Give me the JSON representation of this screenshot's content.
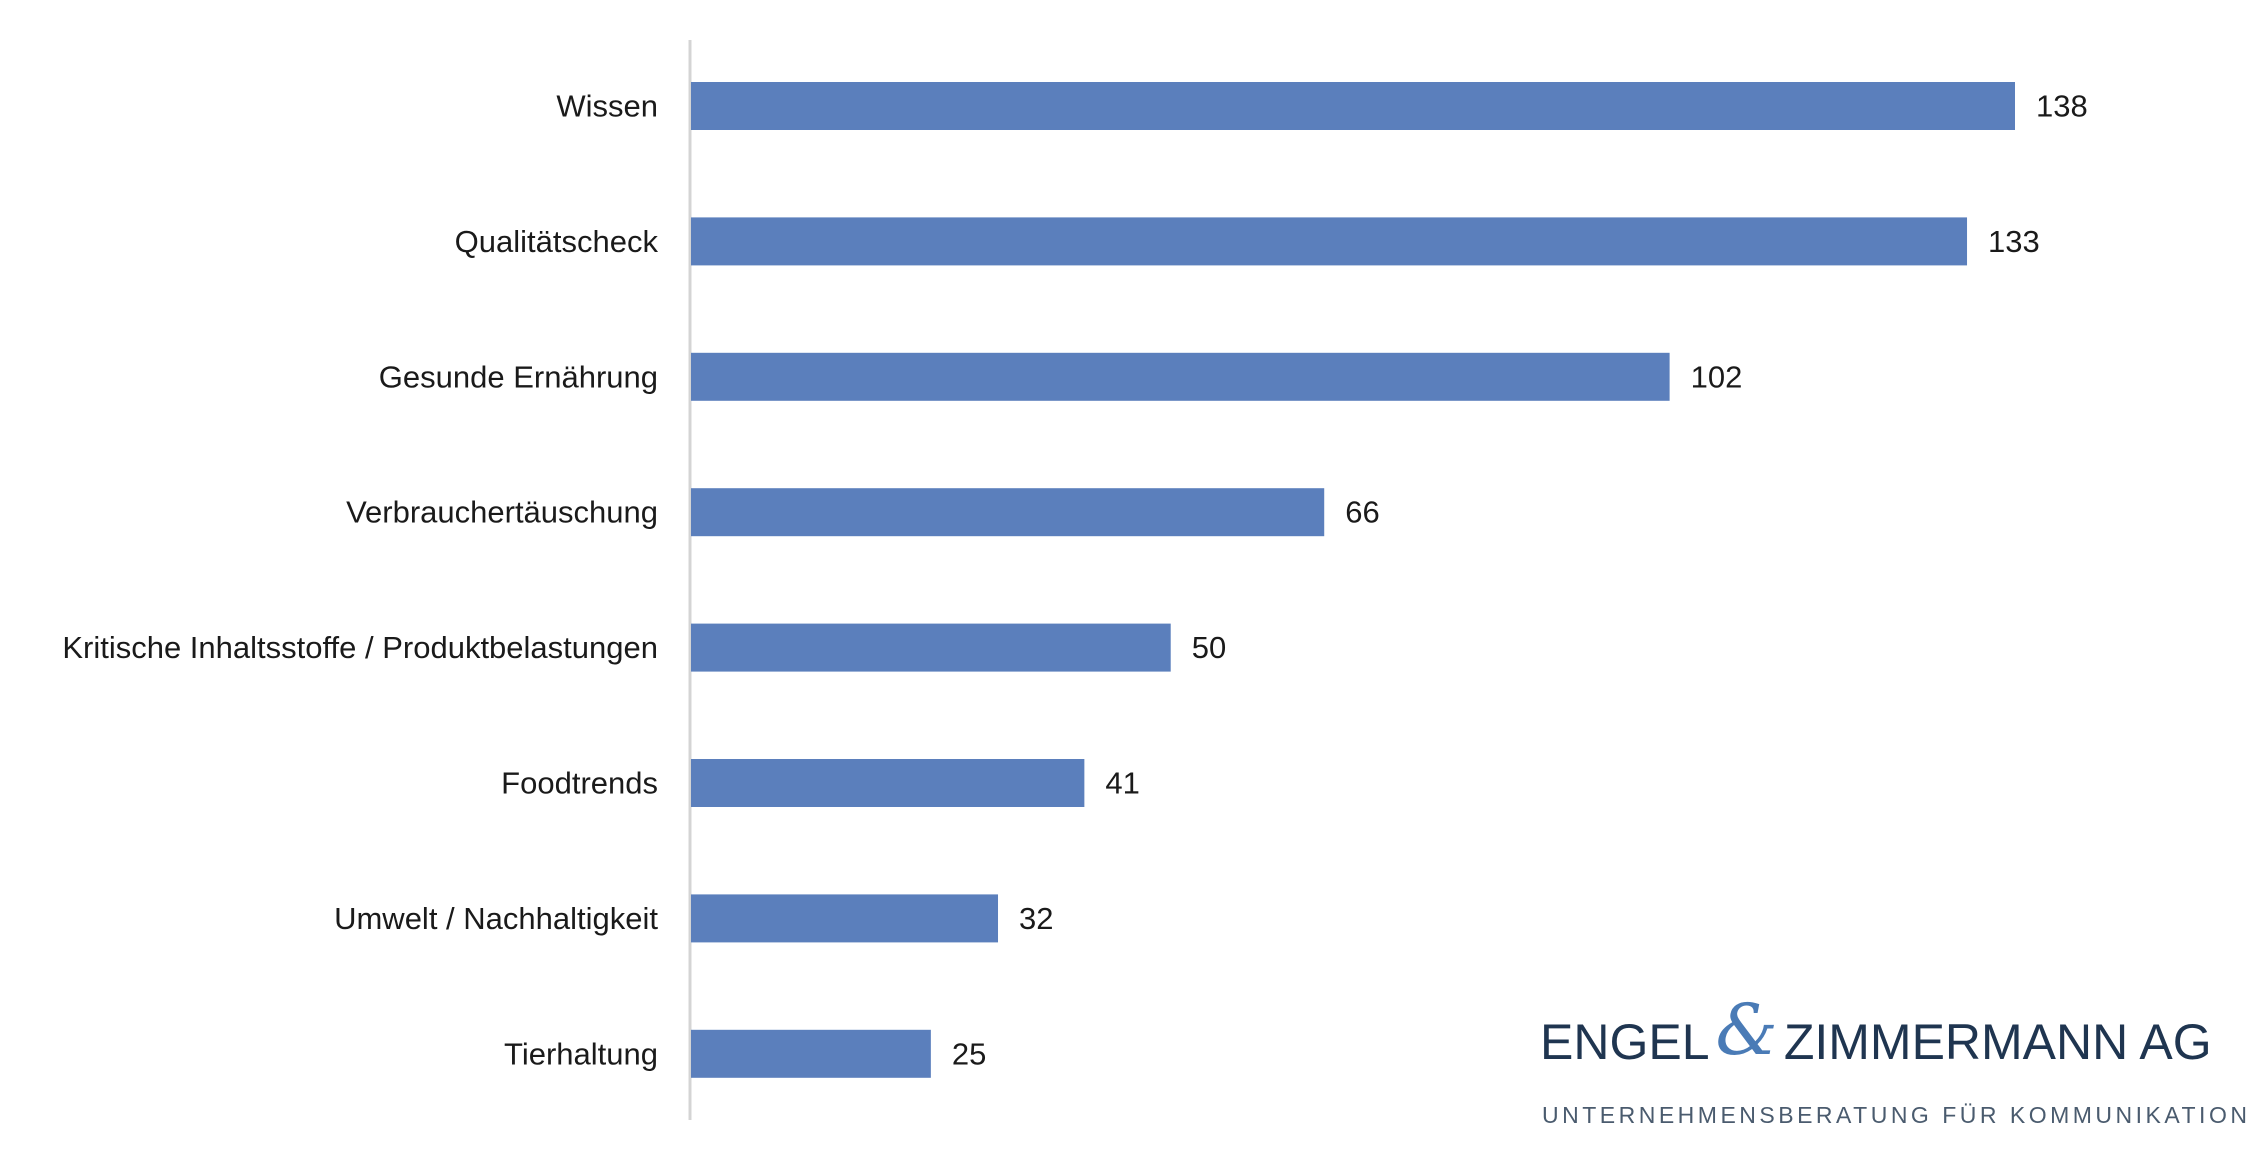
{
  "chart_data": {
    "type": "bar",
    "orientation": "horizontal",
    "categories": [
      "Wissen",
      "Qualitätscheck",
      "Gesunde Ernährung",
      "Verbrauchertäuschung",
      "Kritische Inhaltsstoffe  / Produktbelastungen",
      "Foodtrends",
      "Umwelt / Nachhaltigkeit",
      "Tierhaltung"
    ],
    "values": [
      138,
      133,
      102,
      66,
      50,
      41,
      32,
      25
    ],
    "value_labels": [
      "138",
      "133",
      "102",
      "66",
      "50",
      "41",
      "32",
      "25"
    ],
    "bar_color": "#5b7fbc",
    "data_labels": true,
    "grid": false,
    "legend": "none"
  },
  "logo": {
    "brand_left": "ENGEL",
    "ampersand": "&",
    "brand_right": "ZIMMERMANN AG",
    "tagline": "UNTERNEHMENSBERATUNG FÜR KOMMUNIKATION",
    "brand_color": "#1f3550",
    "ampersand_color": "#4a7bb6"
  }
}
